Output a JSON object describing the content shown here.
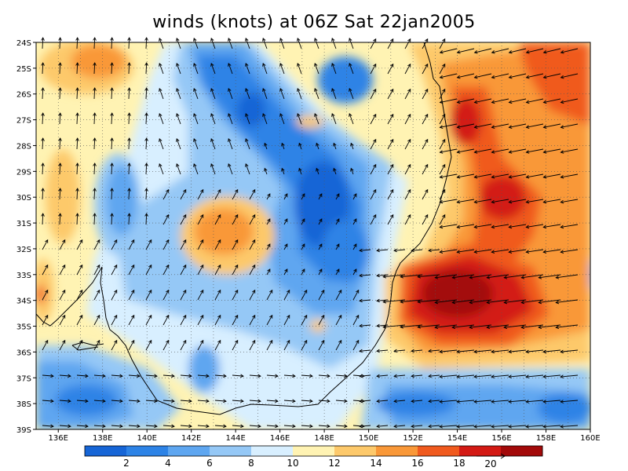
{
  "title": "winds (knots) at 06Z Sat 22jan2005",
  "map": {
    "lat_labels": [
      "24S",
      "25S",
      "26S",
      "27S",
      "28S",
      "29S",
      "30S",
      "31S",
      "32S",
      "33S",
      "34S",
      "35S",
      "36S",
      "37S",
      "38S",
      "39S"
    ],
    "lon_labels": [
      "136E",
      "138E",
      "140E",
      "142E",
      "144E",
      "146E",
      "148E",
      "150E",
      "152E",
      "154E",
      "156E",
      "158E",
      "160E"
    ],
    "lon_range": [
      135,
      160
    ],
    "lat_range": [
      -39,
      -24
    ],
    "grid": "dotted"
  },
  "colorbar": {
    "labels": [
      "2",
      "4",
      "6",
      "8",
      "10",
      "12",
      "14",
      "16",
      "18"
    ],
    "colors": [
      "#1665d6",
      "#2d83e6",
      "#5ea6f0",
      "#95c8f6",
      "#d8efff",
      "#fff3b3",
      "#fdc96b",
      "#f99838",
      "#f05a1e",
      "#d31a14",
      "#a30a0a"
    ]
  },
  "vector_scale": {
    "label": "20"
  },
  "chart_data": {
    "type": "heatmap",
    "title": "winds (knots) at 06Z Sat 22jan2005",
    "xlabel": "",
    "ylabel": "",
    "xlim": [
      135,
      160
    ],
    "ylim": [
      -39,
      -24
    ],
    "x": [
      136,
      138,
      140,
      142,
      144,
      146,
      148,
      150,
      152,
      154,
      156,
      158,
      160
    ],
    "y": [
      -24,
      -25,
      -26,
      -27,
      -28,
      -29,
      -30,
      -31,
      -32,
      -33,
      -34,
      -35,
      -36,
      -37,
      -38,
      -39
    ],
    "levels": [
      2,
      4,
      6,
      8,
      10,
      12,
      14,
      16,
      18
    ],
    "features": [
      {
        "name": "max",
        "lon": 153.8,
        "lat": -33.8,
        "value": 18
      },
      {
        "name": "max",
        "lon": 154.4,
        "lat": -26.8,
        "value": 17
      },
      {
        "name": "max",
        "lon": 155.8,
        "lat": -30.2,
        "value": 17
      },
      {
        "name": "max",
        "lon": 138.5,
        "lat": -24.6,
        "value": 15
      },
      {
        "name": "max",
        "lon": 142.8,
        "lat": -31.3,
        "value": 16
      },
      {
        "name": "min",
        "lon": 146.5,
        "lat": -27.5,
        "value": 2
      },
      {
        "name": "min",
        "lon": 148.6,
        "lat": -32.0,
        "value": 3
      },
      {
        "name": "min",
        "lon": 148.5,
        "lat": -25.5,
        "value": 3
      },
      {
        "name": "min",
        "lon": 137.9,
        "lat": -37.9,
        "value": 3
      },
      {
        "name": "min",
        "lon": 142.3,
        "lat": -37.5,
        "value": 4
      },
      {
        "name": "min",
        "lon": 158.5,
        "lat": -38.4,
        "value": 3
      }
    ]
  }
}
